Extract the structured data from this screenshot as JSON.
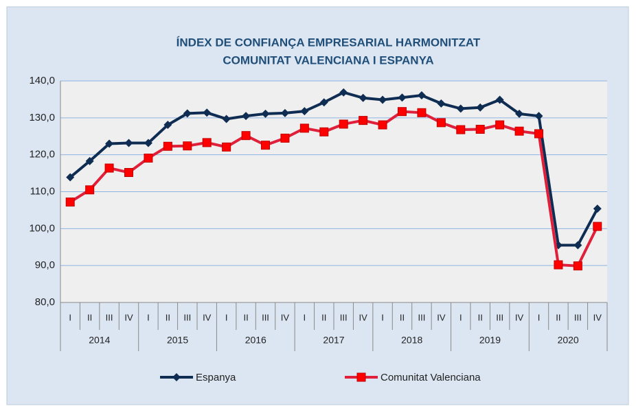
{
  "chart_data": {
    "type": "line",
    "title_lines": [
      "ÍNDEX DE CONFIANÇA EMPRESARIAL HARMONITZAT",
      "COMUNITAT VALENCIANA I ESPANYA"
    ],
    "categories": [
      "I",
      "II",
      "III",
      "IV",
      "I",
      "II",
      "III",
      "IV",
      "I",
      "II",
      "III",
      "IV",
      "I",
      "II",
      "III",
      "IV",
      "I",
      "II",
      "III",
      "IV",
      "I",
      "II",
      "III",
      "IV",
      "I",
      "II",
      "III",
      "IV"
    ],
    "groups": [
      "2014",
      "2015",
      "2016",
      "2017",
      "2018",
      "2019",
      "2020"
    ],
    "series": [
      {
        "name": "Espanya",
        "color": "#0f2d52",
        "marker": "diamond",
        "values": [
          113.9,
          118.3,
          123.0,
          123.2,
          123.2,
          128.1,
          131.2,
          131.4,
          129.7,
          130.5,
          131.1,
          131.3,
          131.8,
          134.2,
          136.9,
          135.4,
          134.9,
          135.5,
          136.1,
          133.9,
          132.5,
          132.8,
          134.9,
          131.1,
          130.5,
          95.5,
          95.5,
          105.4
        ]
      },
      {
        "name": "Comunitat Valenciana",
        "color": "#e0203a",
        "marker": "square",
        "values": [
          107.2,
          110.5,
          116.4,
          115.2,
          119.1,
          122.3,
          122.4,
          123.3,
          122.1,
          125.2,
          122.6,
          124.5,
          127.2,
          126.2,
          128.3,
          129.3,
          128.1,
          131.7,
          131.4,
          128.7,
          126.8,
          126.9,
          128.1,
          126.4,
          125.7,
          90.2,
          89.9,
          100.6
        ]
      }
    ],
    "ylim": [
      80,
      140
    ],
    "yticks": [
      {
        "value": 80,
        "label": "80,0"
      },
      {
        "value": 90,
        "label": "90,0"
      },
      {
        "value": 100,
        "label": "100,0"
      },
      {
        "value": 110,
        "label": "110,0"
      },
      {
        "value": 120,
        "label": "120,0"
      },
      {
        "value": 130,
        "label": "130,0"
      },
      {
        "value": 140,
        "label": "140,0"
      }
    ],
    "grid": true
  }
}
